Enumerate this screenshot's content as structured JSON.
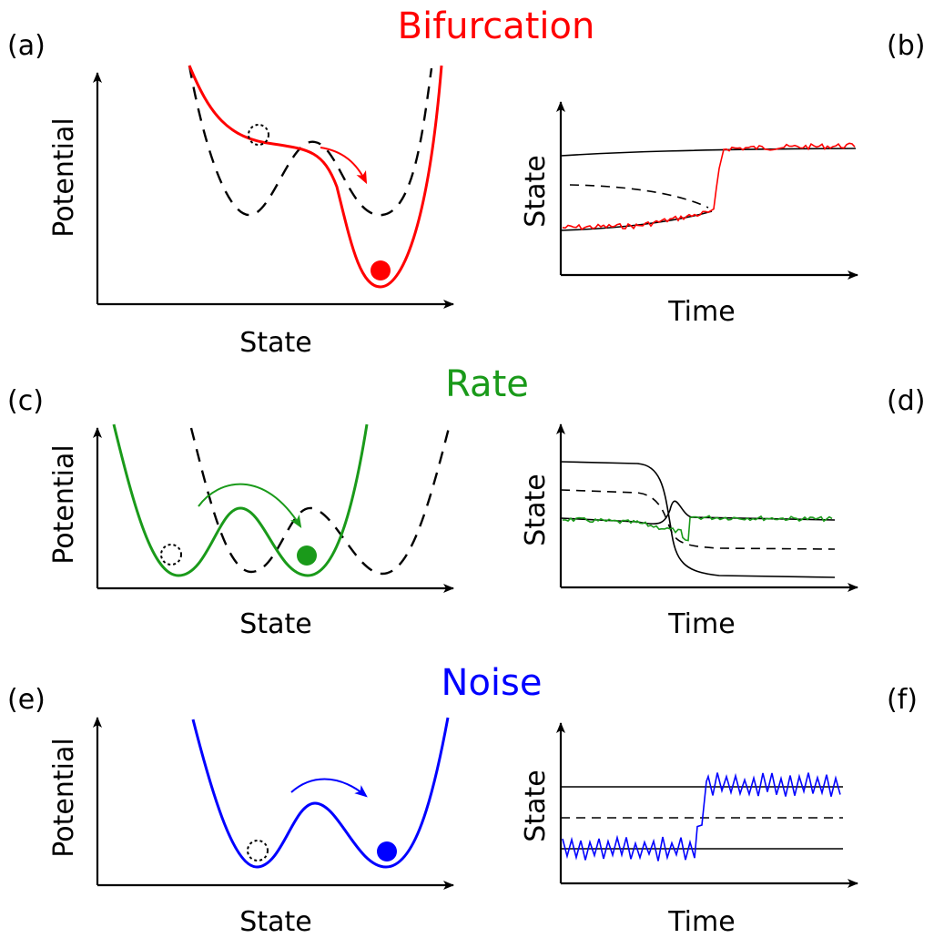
{
  "sections": {
    "bifurcation": {
      "title": "Bifurcation",
      "color": "#ff0000"
    },
    "rate": {
      "title": "Rate",
      "color": "#1a9a1a"
    },
    "noise": {
      "title": "Noise",
      "color": "#0000ff"
    }
  },
  "panels": {
    "a": "(a)",
    "b": "(b)",
    "c": "(c)",
    "d": "(d)",
    "e": "(e)",
    "f": "(f)"
  },
  "axes": {
    "potential": "Potential",
    "state": "State",
    "time": "Time"
  }
}
